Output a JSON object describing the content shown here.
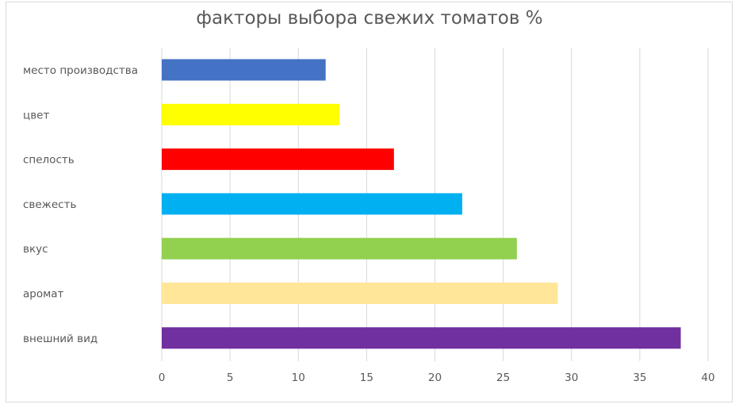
{
  "chart_data": {
    "type": "bar",
    "orientation": "horizontal",
    "title": "факторы выбора свежих томатов %",
    "categories": [
      "место производства",
      "цвет",
      "спелость",
      "свежесть",
      "вкус",
      "аромат",
      "внешний вид"
    ],
    "values": [
      12,
      13,
      17,
      22,
      26,
      29,
      38
    ],
    "colors": [
      "#4472c4",
      "#ffff00",
      "#ff0000",
      "#00b0f0",
      "#92d050",
      "#ffe699",
      "#7030a0"
    ],
    "xlim": [
      0,
      40
    ],
    "xticks": [
      "0",
      "5",
      "10",
      "15",
      "20",
      "25",
      "30",
      "35",
      "40"
    ],
    "xlabel": "",
    "ylabel": "",
    "grid": "vertical",
    "legend": "none"
  }
}
